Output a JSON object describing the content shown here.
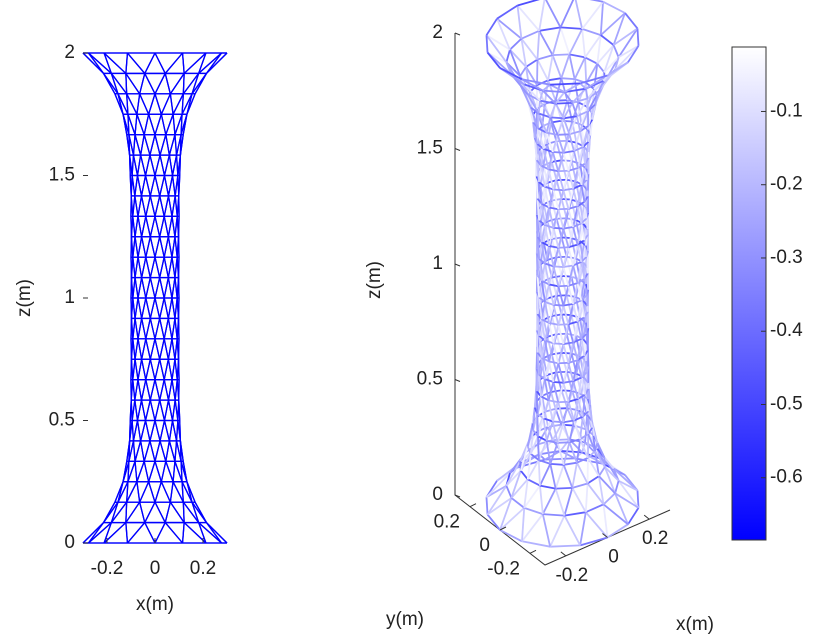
{
  "chart_data": [
    {
      "type": "wireframe2d",
      "xlabel": "x(m)",
      "ylabel": "z(m)",
      "xlim": [
        -0.3,
        0.3
      ],
      "ylim": [
        0,
        2
      ],
      "xticks": [
        -0.2,
        0,
        0.2
      ],
      "yticks": [
        0,
        0.5,
        1,
        1.5,
        2
      ],
      "color": "#0000ff"
    },
    {
      "type": "wireframe3d",
      "xlabel": "x(m)",
      "ylabel": "y(m)",
      "zlabel": "z(m)",
      "xlim": [
        -0.3,
        0.3
      ],
      "ylim": [
        -0.3,
        0.3
      ],
      "zlim": [
        0,
        2
      ],
      "xticks": [
        -0.2,
        0,
        0.2
      ],
      "yticks": [
        -0.2,
        0,
        0.2
      ],
      "zticks": [
        0,
        0.5,
        1,
        1.5,
        2
      ],
      "colorbar": {
        "clim": [
          -0.685,
          -0.012
        ],
        "ticks": [
          -0.6,
          -0.5,
          -0.4,
          -0.3,
          -0.2,
          -0.1
        ],
        "colors": [
          "#0000ff",
          "#ffffff"
        ]
      }
    }
  ]
}
